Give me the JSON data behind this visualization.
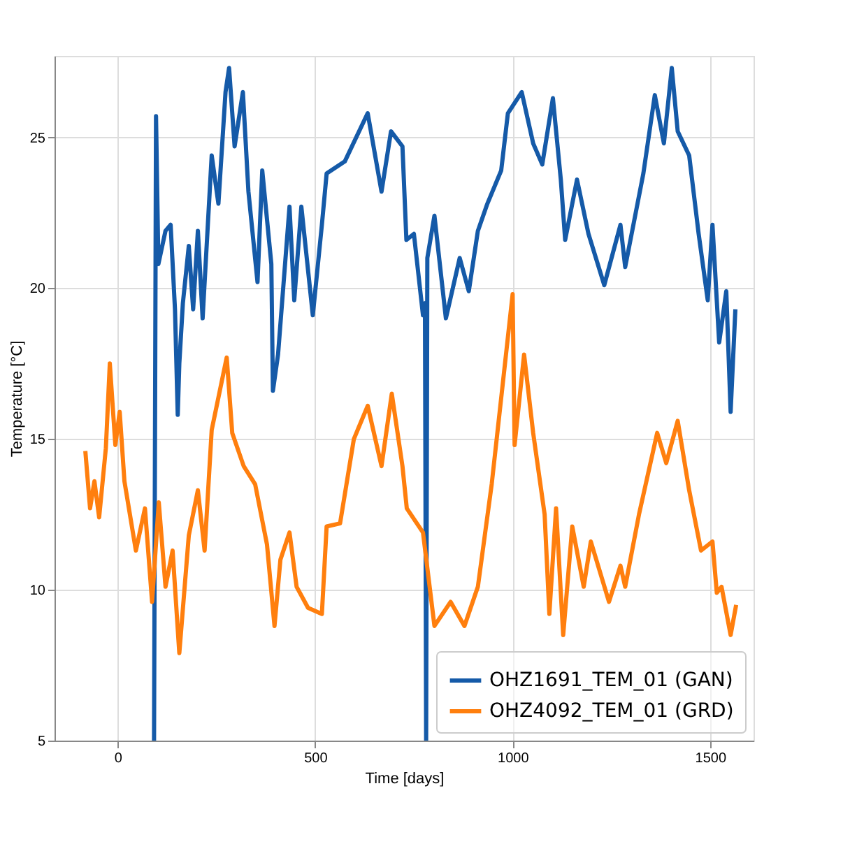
{
  "chart_data": {
    "type": "line",
    "xlabel": "Time [days]",
    "ylabel": "Temperature [°C]",
    "xlim": [
      -160,
      1610
    ],
    "ylim": [
      5,
      27.7
    ],
    "xticks": [
      0,
      500,
      1000,
      1500
    ],
    "yticks": [
      5,
      10,
      15,
      20,
      25
    ],
    "grid": true,
    "legend": "bottom right",
    "line_style": "solid",
    "marker": "none",
    "series": [
      {
        "name": "OHZ1691_TEM_01 (GAN)",
        "color": "#155aa8",
        "x": [
          92,
          97,
          103,
          121,
          134,
          145,
          152,
          156,
          165,
          180,
          191,
          203,
          215,
          238,
          255,
          273,
          282,
          296,
          317,
          331,
          354,
          366,
          389,
          393,
          406,
          435,
          447,
          465,
          494,
          517,
          529,
          575,
          633,
          668,
          692,
          721,
          731,
          750,
          773,
          778,
          781,
          784,
          802,
          831,
          866,
          889,
          912,
          936,
          971,
          988,
          1023,
          1052,
          1075,
          1102,
          1122,
          1133,
          1163,
          1192,
          1232,
          1273,
          1285,
          1331,
          1360,
          1383,
          1403,
          1418,
          1447,
          1471,
          1494,
          1506,
          1523,
          1541,
          1552,
          1564
        ],
        "values": [
          5,
          25.7,
          20.8,
          21.9,
          22.1,
          19.3,
          15.8,
          17.5,
          19.5,
          21.4,
          19.3,
          21.9,
          19.0,
          24.4,
          22.8,
          26.5,
          27.3,
          24.7,
          26.5,
          23.2,
          20.2,
          23.9,
          20.8,
          16.6,
          17.8,
          22.7,
          19.6,
          22.7,
          19.1,
          22.1,
          23.8,
          24.2,
          25.8,
          23.2,
          25.2,
          24.7,
          21.6,
          21.8,
          19.1,
          19.5,
          5,
          21,
          22.4,
          19.0,
          21.0,
          19.9,
          21.9,
          22.8,
          23.9,
          25.8,
          26.5,
          24.8,
          24.1,
          26.3,
          23.6,
          21.6,
          23.6,
          21.8,
          20.1,
          22.1,
          20.7,
          23.8,
          26.4,
          24.8,
          27.3,
          25.2,
          24.4,
          21.8,
          19.6,
          22.1,
          18.2,
          19.9,
          15.9,
          19.3
        ]
      },
      {
        "name": "OHZ4092_TEM_01 (GRD)",
        "color": "#ff7f0e",
        "x": [
          -82,
          -70,
          -59,
          -47,
          -30,
          -20,
          -6,
          5,
          17,
          46,
          69,
          87,
          104,
          121,
          139,
          156,
          180,
          203,
          220,
          238,
          276,
          290,
          319,
          348,
          378,
          397,
          412,
          435,
          453,
          482,
          517,
          529,
          563,
          598,
          633,
          668,
          694,
          721,
          732,
          773,
          802,
          843,
          878,
          912,
          947,
          1000,
          1005,
          1029,
          1052,
          1081,
          1093,
          1110,
          1128,
          1151,
          1180,
          1198,
          1244,
          1273,
          1285,
          1320,
          1366,
          1389,
          1418,
          1447,
          1477,
          1506,
          1517,
          1529,
          1552,
          1566
        ],
        "values": [
          14.6,
          12.7,
          13.6,
          12.4,
          14.7,
          17.5,
          14.8,
          15.9,
          13.6,
          11.3,
          12.7,
          9.6,
          12.9,
          10.1,
          11.3,
          7.9,
          11.8,
          13.3,
          11.3,
          15.3,
          17.7,
          15.2,
          14.1,
          13.5,
          11.5,
          8.8,
          11.0,
          11.9,
          10.1,
          9.4,
          9.2,
          12.1,
          12.2,
          15.0,
          16.1,
          14.1,
          16.5,
          14.1,
          12.7,
          11.9,
          8.8,
          9.6,
          8.8,
          10.1,
          13.5,
          19.8,
          14.8,
          17.8,
          15.2,
          12.5,
          9.2,
          12.7,
          8.5,
          12.1,
          10.1,
          11.6,
          9.6,
          10.8,
          10.1,
          12.5,
          15.2,
          14.2,
          15.6,
          13.3,
          11.3,
          11.6,
          9.9,
          10.1,
          8.5,
          9.5
        ]
      }
    ]
  }
}
